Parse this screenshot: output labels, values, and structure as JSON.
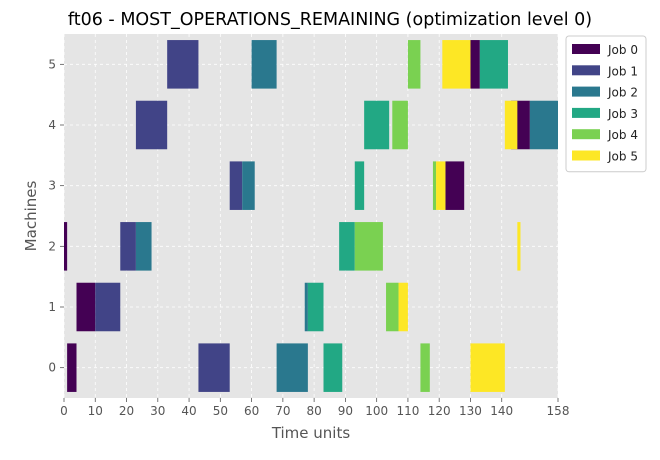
{
  "chart_data": {
    "type": "gantt",
    "title": "ft06 - MOST_OPERATIONS_REMAINING (optimization level 0)",
    "xlabel": "Time units",
    "ylabel": "Machines",
    "xlim": [
      0,
      158
    ],
    "xticks": [
      0,
      10,
      20,
      30,
      40,
      50,
      60,
      70,
      80,
      90,
      100,
      110,
      120,
      130,
      140,
      158
    ],
    "xtick_labels": [
      "0",
      "10",
      "20",
      "30",
      "40",
      "50",
      "60",
      "70",
      "80",
      "90",
      "100",
      "110",
      "120",
      "130",
      "140",
      "158"
    ],
    "yticks": [
      0,
      1,
      2,
      3,
      4,
      5
    ],
    "ytick_labels": [
      "0",
      "1",
      "2",
      "3",
      "4",
      "5"
    ],
    "grid": true,
    "legend_position": "upper-right outside",
    "series": [
      {
        "name": "Job 0",
        "color": "#440154",
        "tasks": [
          {
            "machine": 0,
            "start": 1,
            "end": 4
          },
          {
            "machine": 1,
            "start": 4,
            "end": 10
          },
          {
            "machine": 2,
            "start": 0,
            "end": 1
          },
          {
            "machine": 3,
            "start": 122,
            "end": 128
          },
          {
            "machine": 4,
            "start": 143,
            "end": 149
          },
          {
            "machine": 5,
            "start": 130,
            "end": 133
          }
        ]
      },
      {
        "name": "Job 1",
        "color": "#414487",
        "tasks": [
          {
            "machine": 0,
            "start": 43,
            "end": 53
          },
          {
            "machine": 1,
            "start": 10,
            "end": 18
          },
          {
            "machine": 2,
            "start": 18,
            "end": 23
          },
          {
            "machine": 3,
            "start": 53,
            "end": 57
          },
          {
            "machine": 4,
            "start": 23,
            "end": 33
          },
          {
            "machine": 5,
            "start": 33,
            "end": 43
          }
        ]
      },
      {
        "name": "Job 2",
        "color": "#2a788e",
        "tasks": [
          {
            "machine": 0,
            "start": 68,
            "end": 78
          },
          {
            "machine": 1,
            "start": 77,
            "end": 78
          },
          {
            "machine": 2,
            "start": 23,
            "end": 28
          },
          {
            "machine": 3,
            "start": 57,
            "end": 61
          },
          {
            "machine": 4,
            "start": 149,
            "end": 158
          },
          {
            "machine": 5,
            "start": 60,
            "end": 68
          }
        ]
      },
      {
        "name": "Job 3",
        "color": "#22a884",
        "tasks": [
          {
            "machine": 0,
            "start": 83,
            "end": 89
          },
          {
            "machine": 1,
            "start": 78,
            "end": 83
          },
          {
            "machine": 2,
            "start": 88,
            "end": 93
          },
          {
            "machine": 3,
            "start": 93,
            "end": 96
          },
          {
            "machine": 4,
            "start": 96,
            "end": 104
          },
          {
            "machine": 5,
            "start": 133,
            "end": 142
          }
        ]
      },
      {
        "name": "Job 4",
        "color": "#7ad151",
        "tasks": [
          {
            "machine": 0,
            "start": 114,
            "end": 117
          },
          {
            "machine": 1,
            "start": 103,
            "end": 107
          },
          {
            "machine": 2,
            "start": 93,
            "end": 102
          },
          {
            "machine": 3,
            "start": 118,
            "end": 119
          },
          {
            "machine": 4,
            "start": 105,
            "end": 110
          },
          {
            "machine": 5,
            "start": 110,
            "end": 114
          }
        ]
      },
      {
        "name": "Job 5",
        "color": "#fde725",
        "tasks": [
          {
            "machine": 0,
            "start": 130,
            "end": 141
          },
          {
            "machine": 1,
            "start": 107,
            "end": 110
          },
          {
            "machine": 2,
            "start": 145,
            "end": 146
          },
          {
            "machine": 3,
            "start": 119,
            "end": 122
          },
          {
            "machine": 4,
            "start": 141,
            "end": 145
          },
          {
            "machine": 5,
            "start": 121,
            "end": 130
          }
        ]
      }
    ]
  }
}
